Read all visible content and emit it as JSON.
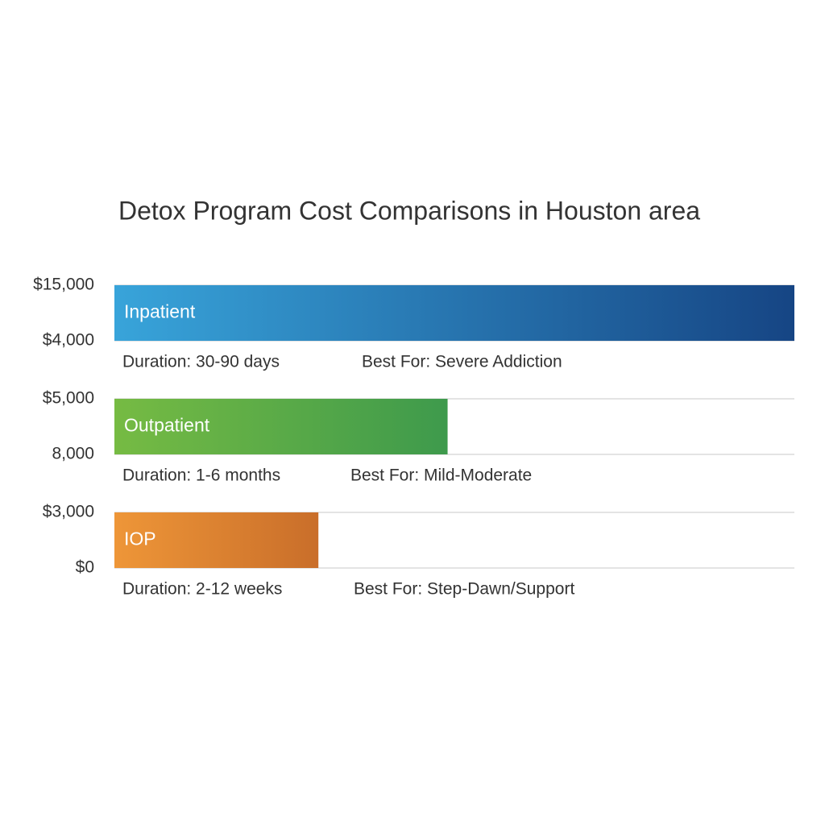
{
  "chart_data": {
    "type": "bar",
    "orientation": "horizontal",
    "title": "Detox Program Cost Comparisons in Houston area",
    "categories": [
      "Inpatient",
      "Outpatient",
      "IOP"
    ],
    "values": [
      100,
      49,
      30
    ],
    "xlim": [
      0,
      100
    ],
    "colors": [
      [
        "#38a4da",
        "#164584"
      ],
      [
        "#76bb43",
        "#3e9a4c"
      ],
      [
        "#ee9638",
        "#c96e2a"
      ]
    ],
    "side_labels": [
      "$15,000",
      "$4,000",
      "$5,000",
      "8,000",
      "$3,000",
      "$0"
    ],
    "durations": [
      "Duration: 30-90 days",
      "Duration: 1-6 months",
      "Duration: 2-12 weeks"
    ],
    "best_for": [
      "Best For: Severe Addiction",
      "Best For: Mild-Moderate",
      "Best For: Step-Dawn/Support"
    ],
    "grid": true
  }
}
